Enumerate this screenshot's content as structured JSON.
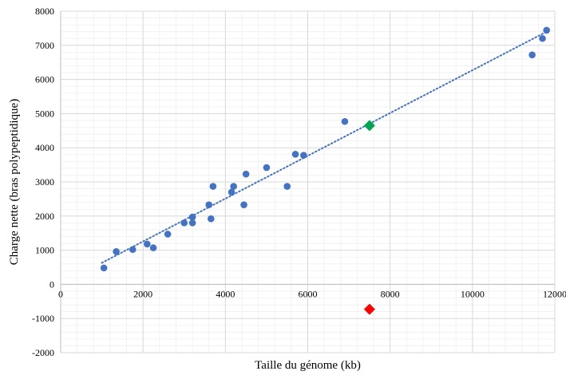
{
  "chart_data": {
    "type": "scatter",
    "title": "",
    "xlabel": "Taille du génome (kb)",
    "ylabel": "Charge nette  (bras polypeptidique)",
    "xlim": [
      0,
      12000
    ],
    "ylim": [
      -2000,
      8000
    ],
    "x_ticks": [
      0,
      2000,
      4000,
      6000,
      8000,
      10000,
      12000
    ],
    "y_ticks": [
      -2000,
      -1000,
      0,
      1000,
      2000,
      3000,
      4000,
      5000,
      6000,
      7000,
      8000
    ],
    "grid": true,
    "legend": "none",
    "series": [
      {
        "marker": "circle",
        "color": "#4472C4",
        "points": [
          {
            "x": 1050,
            "y": 480
          },
          {
            "x": 1350,
            "y": 960
          },
          {
            "x": 1750,
            "y": 1020
          },
          {
            "x": 2100,
            "y": 1180
          },
          {
            "x": 2250,
            "y": 1070
          },
          {
            "x": 2600,
            "y": 1470
          },
          {
            "x": 3000,
            "y": 1800
          },
          {
            "x": 3200,
            "y": 1800
          },
          {
            "x": 3200,
            "y": 1970
          },
          {
            "x": 3600,
            "y": 2330
          },
          {
            "x": 3650,
            "y": 1920
          },
          {
            "x": 3700,
            "y": 2870
          },
          {
            "x": 4150,
            "y": 2700
          },
          {
            "x": 4200,
            "y": 2870
          },
          {
            "x": 4450,
            "y": 2330
          },
          {
            "x": 4500,
            "y": 3230
          },
          {
            "x": 5000,
            "y": 3420
          },
          {
            "x": 5500,
            "y": 2870
          },
          {
            "x": 5700,
            "y": 3810
          },
          {
            "x": 5900,
            "y": 3780
          },
          {
            "x": 6900,
            "y": 4770
          },
          {
            "x": 11450,
            "y": 6720
          },
          {
            "x": 11700,
            "y": 7200
          },
          {
            "x": 11800,
            "y": 7440
          }
        ]
      },
      {
        "marker": "diamond",
        "color": "#00A651",
        "points": [
          {
            "x": 7500,
            "y": 4650
          }
        ]
      },
      {
        "marker": "diamond",
        "color": "#FF0000",
        "points": [
          {
            "x": 7500,
            "y": -730
          }
        ]
      }
    ],
    "trendline": {
      "style": "dotted",
      "color": "#4472C4",
      "from": {
        "x": 1000,
        "y": 630
      },
      "to": {
        "x": 11800,
        "y": 7400
      }
    }
  }
}
